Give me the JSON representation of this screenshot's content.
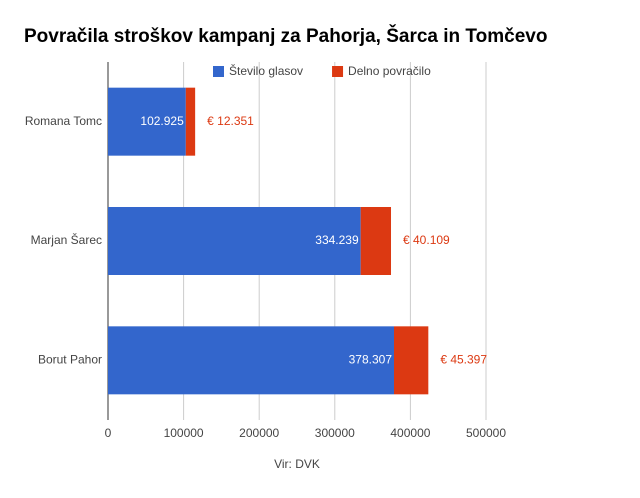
{
  "chart_data": {
    "type": "stacked_barh",
    "title": "Povračila stroškov kampanj za Pahorja, Šarca in Tomčevo",
    "categories": [
      "Romana Tomc",
      "Marjan Šarec",
      "Borut Pahor"
    ],
    "series": [
      {
        "name": "Število glasov",
        "color": "#3366cc",
        "values": [
          102925,
          334239,
          378307
        ],
        "value_labels": [
          "102.925",
          "334.239",
          "378.307"
        ]
      },
      {
        "name": "Delno povračilo",
        "color": "#dc3912",
        "values": [
          12351,
          40109,
          45397
        ],
        "value_labels": [
          "€ 12.351",
          "€ 40.109",
          "€ 45.397"
        ]
      }
    ],
    "xlim": [
      0,
      500000
    ],
    "xticks": [
      0,
      100000,
      200000,
      300000,
      400000,
      500000
    ],
    "grid": true,
    "legend": "top",
    "source": "Vir: DVK"
  }
}
